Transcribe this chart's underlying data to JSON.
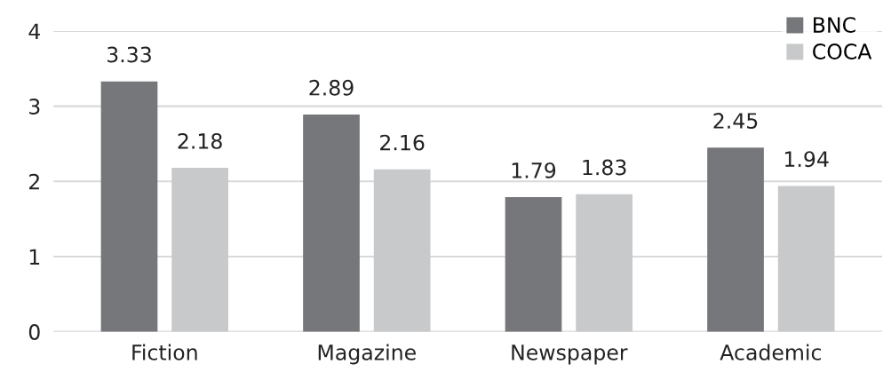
{
  "chart_data": {
    "type": "bar",
    "categories": [
      "Fiction",
      "Magazine",
      "Newspaper",
      "Academic"
    ],
    "series": [
      {
        "name": "BNC",
        "color": "#76777b",
        "values": [
          3.33,
          2.89,
          1.79,
          2.45
        ]
      },
      {
        "name": "COCA",
        "color": "#c8c9cb",
        "values": [
          2.18,
          2.16,
          1.83,
          1.94
        ]
      }
    ],
    "ylim": [
      0,
      4
    ],
    "yticks": [
      0,
      1,
      2,
      3,
      4
    ],
    "grid": "y",
    "legend": "top right",
    "data_labels": true
  }
}
